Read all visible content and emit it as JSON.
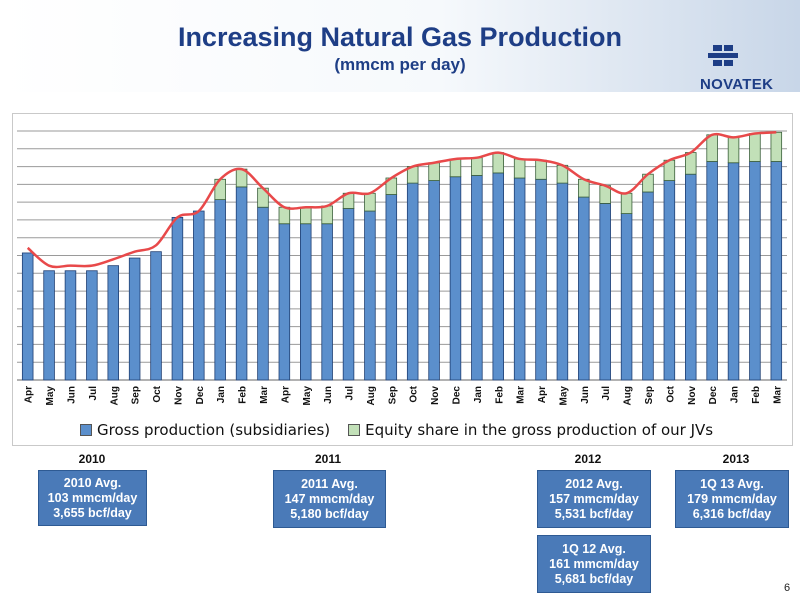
{
  "title": "Increasing Natural Gas Production",
  "subtitle": "(mmcm per day)",
  "logo": {
    "text": "NOVATEK",
    "color": "#1e3e86"
  },
  "page_number": "6",
  "colors": {
    "gross": "#5b8fcc",
    "equity": "#c2e0b8",
    "line": "#e8494a",
    "box": "#4a7ab8"
  },
  "chart_data": {
    "type": "bar",
    "stacked": true,
    "categories": [
      "Apr",
      "May",
      "Jun",
      "Jul",
      "Aug",
      "Sep",
      "Oct",
      "Nov",
      "Dec",
      "Jan",
      "Feb",
      "Mar",
      "Apr",
      "May",
      "Jun",
      "Jul",
      "Aug",
      "Sep",
      "Oct",
      "Nov",
      "Dec",
      "Jan",
      "Feb",
      "Mar",
      "Apr",
      "May",
      "Jun",
      "Jul",
      "Aug",
      "Sep",
      "Oct",
      "Nov",
      "Dec",
      "Jan",
      "Feb",
      "Mar"
    ],
    "series": [
      {
        "name": "Gross production (subsidiaries)",
        "values": [
          100,
          86,
          86,
          86,
          90,
          96,
          101,
          128,
          133,
          142,
          152,
          136,
          123,
          123,
          123,
          135,
          133,
          146,
          155,
          157,
          160,
          161,
          163,
          159,
          158,
          155,
          144,
          139,
          131,
          148,
          157,
          162,
          172,
          171,
          172,
          172
        ]
      },
      {
        "name": "Equity share in the gross production of our JVs",
        "values": [
          0,
          0,
          0,
          0,
          0,
          0,
          0,
          0,
          0,
          16,
          14,
          15,
          13,
          13,
          14,
          12,
          14,
          13,
          13,
          14,
          14,
          14,
          16,
          15,
          15,
          14,
          14,
          14,
          16,
          14,
          16,
          17,
          21,
          20,
          22,
          23
        ]
      }
    ],
    "line_values": [
      104,
      90,
      90,
      90,
      95,
      101,
      106,
      128,
      133,
      158,
      166,
      151,
      136,
      136,
      137,
      147,
      147,
      159,
      168,
      171,
      174,
      175,
      179,
      174,
      173,
      169,
      158,
      153,
      147,
      162,
      173,
      179,
      193,
      191,
      194,
      195
    ],
    "ylim": [
      0,
      196
    ],
    "grid": true,
    "legend_position": "bottom"
  },
  "years": [
    "2010",
    "2011",
    "2012",
    "2013"
  ],
  "boxes": [
    {
      "lines": [
        "2010 Avg.",
        "103 mmcm/day",
        "3,655 bcf/day"
      ]
    },
    {
      "lines": [
        "2011 Avg.",
        "147 mmcm/day",
        "5,180 bcf/day"
      ]
    },
    {
      "lines": [
        "2012 Avg.",
        "157 mmcm/day",
        "5,531 bcf/day"
      ]
    },
    {
      "lines": [
        "1Q 13 Avg.",
        "179 mmcm/day",
        "6,316 bcf/day"
      ]
    },
    {
      "lines": [
        "1Q 12 Avg.",
        "161 mmcm/day",
        "5,681 bcf/day"
      ]
    }
  ]
}
